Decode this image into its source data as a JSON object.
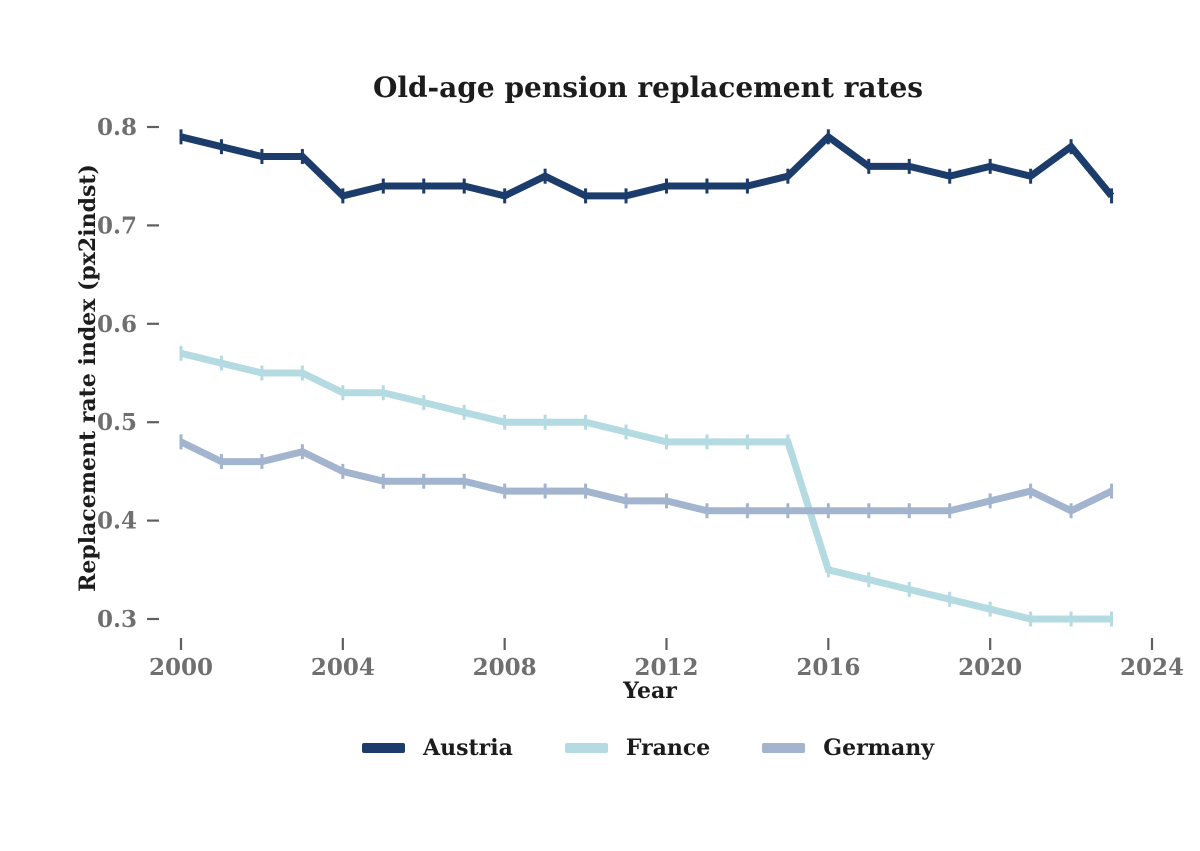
{
  "chart_data": {
    "type": "line",
    "title": "Old-age pension replacement rates",
    "xlabel": "Year",
    "ylabel": "Replacement rate index (px2indst)",
    "x": [
      2000,
      2001,
      2002,
      2003,
      2004,
      2005,
      2006,
      2007,
      2008,
      2009,
      2010,
      2011,
      2012,
      2013,
      2014,
      2015,
      2016,
      2017,
      2018,
      2019,
      2020,
      2021,
      2022,
      2023
    ],
    "series": [
      {
        "name": "Austria",
        "color": "#1c3c6b",
        "values": [
          0.79,
          0.78,
          0.77,
          0.77,
          0.73,
          0.74,
          0.74,
          0.74,
          0.73,
          0.75,
          0.73,
          0.73,
          0.74,
          0.74,
          0.74,
          0.75,
          0.79,
          0.76,
          0.76,
          0.75,
          0.76,
          0.75,
          0.78,
          0.73
        ]
      },
      {
        "name": "France",
        "color": "#b4dbe2",
        "values": [
          0.57,
          0.56,
          0.55,
          0.55,
          0.53,
          0.53,
          0.52,
          0.51,
          0.5,
          0.5,
          0.5,
          0.49,
          0.48,
          0.48,
          0.48,
          0.48,
          0.35,
          0.34,
          0.33,
          0.32,
          0.31,
          0.3,
          0.3,
          0.3
        ]
      },
      {
        "name": "Germany",
        "color": "#a3b4cf",
        "values": [
          0.48,
          0.46,
          0.46,
          0.47,
          0.45,
          0.44,
          0.44,
          0.44,
          0.43,
          0.43,
          0.43,
          0.42,
          0.42,
          0.41,
          0.41,
          0.41,
          0.41,
          0.41,
          0.41,
          0.41,
          0.42,
          0.43,
          0.41,
          0.43
        ]
      }
    ],
    "xticks": [
      2000,
      2004,
      2008,
      2012,
      2016,
      2020,
      2024
    ],
    "yticks": [
      0.3,
      0.4,
      0.5,
      0.6,
      0.7,
      0.8
    ],
    "xlim": [
      2000,
      2024
    ],
    "ylim": [
      0.28,
      0.82
    ],
    "grid": false,
    "marker": "|",
    "legend_position": "bottom",
    "tick_label_color": "#6f6f6f",
    "tick_mark_color": "#5f5f5f",
    "text_color": "#1c1c1c",
    "background_color": "#ffffff"
  }
}
